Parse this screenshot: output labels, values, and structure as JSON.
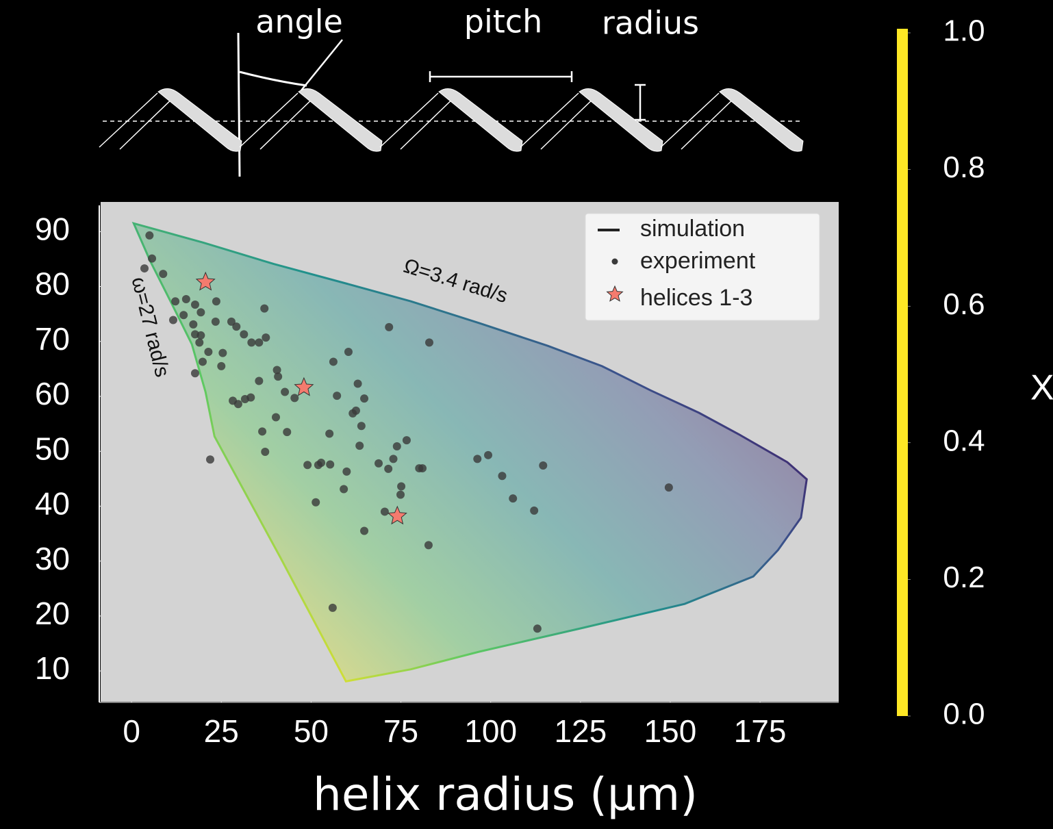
{
  "diagram": {
    "labels": [
      "angle",
      "pitch",
      "radius"
    ]
  },
  "chart_data": {
    "type": "scatter",
    "xlabel": "helix radius (μm)",
    "xlim": [
      -8.6,
      196.9
    ],
    "ylim": [
      4.4,
      95.4
    ],
    "xticks": [
      0,
      25,
      50,
      75,
      100,
      125,
      150,
      175
    ],
    "yticks": [
      10,
      20,
      30,
      40,
      50,
      60,
      70,
      80,
      90
    ],
    "legend": "upper right",
    "annotations": [
      "Ω=3.4 rad/s",
      "ω=27 rad/s"
    ],
    "series": [
      {
        "name": "simulation",
        "color": "#222222",
        "x": [
          0.6,
          20,
          39.6,
          60,
          77.8,
          97,
          115.9,
          131,
          144.5,
          158,
          169.3,
          182.6,
          188,
          186.4,
          180,
          173.1,
          154,
          125.4,
          96.8,
          77.8,
          59.7,
          41.4,
          23.1,
          20.6,
          16.8,
          11.1,
          5.3
        ],
        "values": [
          91.5,
          88,
          84.1,
          80.5,
          77.3,
          73.3,
          69.2,
          65.5,
          61.1,
          57,
          53,
          48,
          44.9,
          37.9,
          32,
          27.2,
          22.2,
          17.8,
          13.5,
          10.3,
          8.1,
          30.7,
          52.7,
          60.8,
          69.5,
          77,
          84.5
        ]
      },
      {
        "name": "experiment",
        "color": "#3a3a3a",
        "x": [
          5.0,
          5.7,
          8.8,
          3.6,
          12.2,
          15.2,
          17.7,
          19.3,
          23.6,
          14.5,
          11.6,
          17.2,
          23.4,
          17.7,
          19.3,
          18.9,
          21.4,
          25.4,
          19.8,
          25.0,
          17.7,
          27.8,
          29.2,
          31.3,
          33.4,
          37.0,
          35.5,
          37.4,
          71.7,
          82.9,
          60.4,
          56.2,
          35.5,
          40.5,
          40.8,
          28.2,
          29.7,
          31.6,
          33.2,
          42.7,
          45.4,
          57.2,
          63.0,
          64.8,
          40.2,
          61.6,
          62.5,
          64.0,
          36.4,
          43.3,
          55.1,
          76.6,
          73.9,
          37.2,
          63.5,
          21.9,
          49.0,
          52.0,
          52.8,
          55.3,
          59.9,
          68.8,
          71.5,
          72.9,
          80.1,
          81.0,
          96.3,
          99.3,
          103.2,
          114.6,
          59.1,
          75.1,
          74.9,
          51.3,
          106.2,
          112.1,
          70.5,
          64.8,
          82.7,
          149.6,
          56.0,
          113.0
        ],
        "values": [
          89.3,
          85.1,
          82.3,
          83.3,
          77.3,
          77.7,
          76.7,
          75.3,
          77.3,
          74.8,
          73.9,
          73.1,
          73.6,
          71.3,
          71.1,
          69.8,
          68.1,
          67.9,
          66.3,
          65.5,
          64.2,
          73.6,
          72.7,
          71.3,
          69.8,
          76.0,
          69.8,
          70.7,
          72.6,
          69.8,
          68.1,
          66.3,
          62.8,
          64.8,
          63.6,
          59.2,
          58.6,
          59.5,
          59.8,
          60.8,
          59.7,
          60.1,
          62.3,
          59.6,
          56.2,
          56.9,
          57.4,
          54.6,
          53.6,
          53.5,
          53.2,
          52.0,
          50.9,
          49.9,
          51.0,
          48.5,
          47.5,
          47.5,
          47.9,
          47.6,
          46.3,
          47.8,
          46.8,
          48.6,
          46.9,
          46.9,
          48.6,
          49.3,
          45.5,
          47.4,
          43.1,
          43.6,
          42.1,
          40.7,
          41.4,
          39.2,
          39.0,
          35.5,
          32.9,
          43.4,
          21.5,
          17.7
        ]
      },
      {
        "name": "helices 1-3",
        "color": "#f47b6e",
        "x": [
          20.6,
          48.0,
          74.0
        ],
        "values": [
          80.8,
          61.6,
          38.2
        ]
      }
    ],
    "colorbar": {
      "label": "X",
      "colormap": [
        "#440154",
        "#3b528b",
        "#21918c",
        "#5ec962",
        "#fde725"
      ],
      "ylim": [
        0,
        1
      ],
      "yticks": [
        {
          "value": 0,
          "label": "0.0"
        },
        0.2,
        0.4,
        0.6,
        0.8,
        {
          "value": 1,
          "label": "1.0"
        }
      ]
    }
  }
}
